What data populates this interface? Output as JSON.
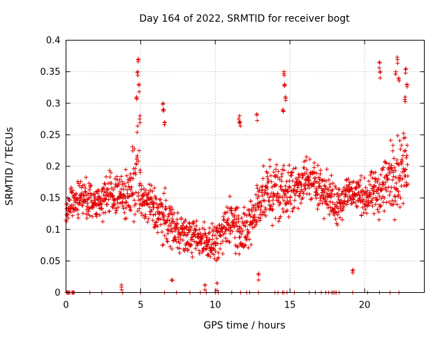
{
  "chart_data": {
    "type": "scatter",
    "title": "Day 164 of 2022, SRMTID for receiver bogt",
    "xlabel": "GPS time / hours",
    "ylabel": "SRMTID / TECUs",
    "xlim": [
      0,
      24
    ],
    "ylim": [
      0,
      0.4
    ],
    "x_ticks": [
      0,
      5,
      10,
      15,
      20
    ],
    "x_tick_labels": [
      "0",
      "5",
      "10",
      "15",
      "20"
    ],
    "y_ticks": [
      0,
      0.05,
      0.1,
      0.15,
      0.2,
      0.25,
      0.3,
      0.35,
      0.4
    ],
    "y_tick_labels": [
      "0",
      "0.05",
      "0.1",
      "0.15",
      "0.2",
      "0.25",
      "0.3",
      "0.35",
      "0.4"
    ],
    "grid": true,
    "marker": "+",
    "color": "#e00000",
    "series": [
      {
        "name": "SRMTID",
        "trend": [
          [
            0.0,
            0.13
          ],
          [
            1.0,
            0.15
          ],
          [
            2.0,
            0.14
          ],
          [
            3.0,
            0.16
          ],
          [
            4.0,
            0.15
          ],
          [
            4.8,
            0.19
          ],
          [
            5.0,
            0.15
          ],
          [
            6.0,
            0.13
          ],
          [
            7.0,
            0.11
          ],
          [
            8.0,
            0.09
          ],
          [
            9.0,
            0.085
          ],
          [
            10.0,
            0.08
          ],
          [
            10.5,
            0.09
          ],
          [
            11.0,
            0.12
          ],
          [
            12.0,
            0.09
          ],
          [
            13.0,
            0.15
          ],
          [
            14.0,
            0.16
          ],
          [
            15.0,
            0.16
          ],
          [
            16.0,
            0.18
          ],
          [
            17.0,
            0.17
          ],
          [
            18.0,
            0.14
          ],
          [
            19.0,
            0.16
          ],
          [
            20.0,
            0.15
          ],
          [
            21.0,
            0.16
          ],
          [
            22.0,
            0.19
          ],
          [
            22.8,
            0.2
          ]
        ],
        "spread": [
          [
            0.0,
            0.04
          ],
          [
            4.0,
            0.05
          ],
          [
            4.8,
            0.12
          ],
          [
            5.0,
            0.05
          ],
          [
            6.5,
            0.06
          ],
          [
            8.0,
            0.04
          ],
          [
            10.0,
            0.04
          ],
          [
            11.5,
            0.06
          ],
          [
            12.8,
            0.06
          ],
          [
            14.5,
            0.07
          ],
          [
            16.0,
            0.05
          ],
          [
            18.0,
            0.05
          ],
          [
            20.0,
            0.04
          ],
          [
            22.2,
            0.09
          ],
          [
            22.8,
            0.07
          ]
        ],
        "spikes": [
          {
            "x": 4.85,
            "y": 0.37
          },
          {
            "x": 4.8,
            "y": 0.35
          },
          {
            "x": 4.9,
            "y": 0.33
          },
          {
            "x": 4.75,
            "y": 0.31
          },
          {
            "x": 4.95,
            "y": 0.28
          },
          {
            "x": 6.5,
            "y": 0.3
          },
          {
            "x": 6.55,
            "y": 0.29
          },
          {
            "x": 6.6,
            "y": 0.27
          },
          {
            "x": 11.6,
            "y": 0.28
          },
          {
            "x": 11.65,
            "y": 0.27
          },
          {
            "x": 12.8,
            "y": 0.283
          },
          {
            "x": 14.6,
            "y": 0.35
          },
          {
            "x": 14.65,
            "y": 0.33
          },
          {
            "x": 14.7,
            "y": 0.31
          },
          {
            "x": 14.55,
            "y": 0.29
          },
          {
            "x": 21.0,
            "y": 0.365
          },
          {
            "x": 21.05,
            "y": 0.35
          },
          {
            "x": 22.2,
            "y": 0.373
          },
          {
            "x": 22.1,
            "y": 0.35
          },
          {
            "x": 22.3,
            "y": 0.34
          },
          {
            "x": 22.75,
            "y": 0.355
          },
          {
            "x": 22.85,
            "y": 0.33
          },
          {
            "x": 22.7,
            "y": 0.31
          },
          {
            "x": 3.7,
            "y": 0.012
          },
          {
            "x": 9.3,
            "y": 0.012
          },
          {
            "x": 10.1,
            "y": 0.015
          },
          {
            "x": 19.2,
            "y": 0.036
          },
          {
            "x": 12.9,
            "y": 0.03
          },
          {
            "x": 7.1,
            "y": 0.02
          }
        ],
        "zero_points_x": [
          0.05,
          0.1,
          0.15,
          0.2,
          0.25,
          0.4,
          0.45,
          0.5,
          0.55,
          1.6,
          2.4,
          3.8,
          5.0,
          6.6,
          7.4,
          8.3,
          9.0,
          9.4,
          10.0,
          10.2,
          11.1,
          11.7,
          12.1,
          12.3,
          12.9,
          14.0,
          14.2,
          14.5,
          14.6,
          14.8,
          15.3,
          16.3,
          16.7,
          17.1,
          17.4,
          17.6,
          17.8,
          17.9,
          18.0,
          18.1,
          18.3,
          19.2,
          20.2,
          21.0,
          21.7,
          22.3
        ],
        "range_x": [
          0.0,
          22.9
        ]
      }
    ]
  }
}
